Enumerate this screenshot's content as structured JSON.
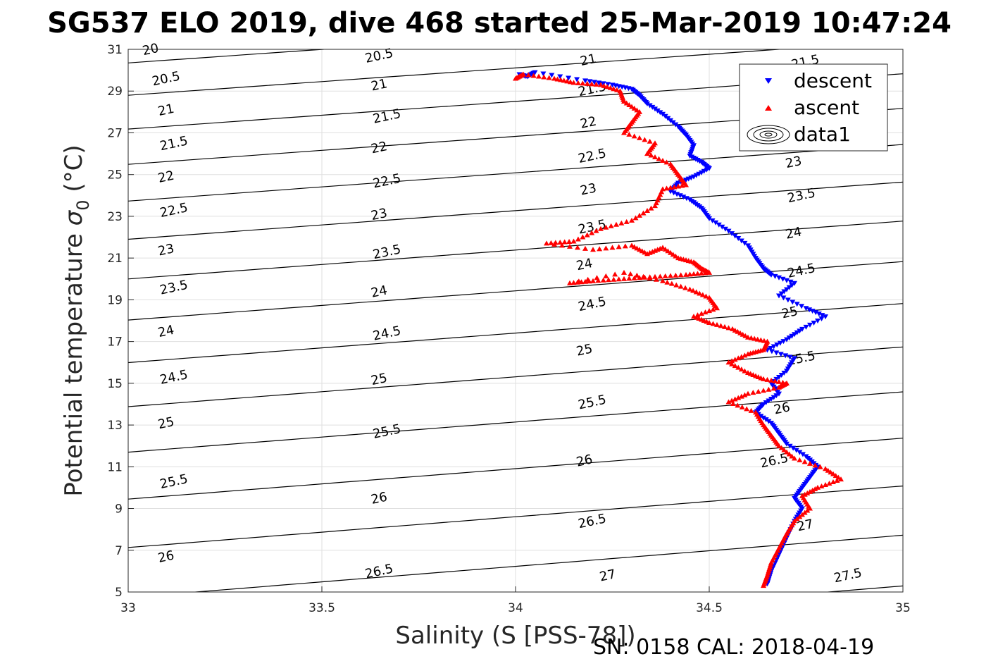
{
  "title": "SG537 ELO 2019, dive 468 started 25-Mar-2019 10:47:24",
  "footer": "SN: 0158  CAL: 2018-04-19",
  "chart_data": {
    "type": "scatter",
    "xlabel": "Salinity (S [PSS-78])",
    "ylabel_text": "Potential temperature ",
    "ylabel_sigma": "σ",
    "ylabel_sub": "0",
    "ylabel_unit": " (°C)",
    "xlim": [
      33,
      35
    ],
    "ylim": [
      5,
      31
    ],
    "xticks": [
      "33",
      "33.5",
      "34",
      "34.5",
      "35"
    ],
    "yticks": [
      "5",
      "7",
      "9",
      "11",
      "13",
      "15",
      "17",
      "19",
      "21",
      "23",
      "25",
      "27",
      "29",
      "31"
    ],
    "grid": true,
    "legend_position": "top-right",
    "legend": [
      "descent",
      "ascent",
      "data1"
    ],
    "colors": {
      "descent": "#0000ff",
      "ascent": "#ff0000",
      "contour": "#000000",
      "grid": "#dfdfdf"
    },
    "contours": {
      "levels": [
        20,
        20.5,
        21,
        21.5,
        22,
        22.5,
        23,
        23.5,
        24,
        24.5,
        25,
        25.5,
        26,
        26.5,
        27,
        27.5
      ],
      "labels": [
        {
          "text": "20",
          "x": 33.06,
          "y": 30.8
        },
        {
          "text": "20.5",
          "x": 33.1,
          "y": 29.4
        },
        {
          "text": "21",
          "x": 33.1,
          "y": 27.9
        },
        {
          "text": "21.5",
          "x": 33.12,
          "y": 26.3
        },
        {
          "text": "22",
          "x": 33.1,
          "y": 24.7
        },
        {
          "text": "22.5",
          "x": 33.12,
          "y": 23.1
        },
        {
          "text": "23",
          "x": 33.1,
          "y": 21.2
        },
        {
          "text": "23.5",
          "x": 33.12,
          "y": 19.4
        },
        {
          "text": "24",
          "x": 33.1,
          "y": 17.3
        },
        {
          "text": "24.5",
          "x": 33.12,
          "y": 15.1
        },
        {
          "text": "25",
          "x": 33.1,
          "y": 12.9
        },
        {
          "text": "25.5",
          "x": 33.12,
          "y": 10.1
        },
        {
          "text": "26",
          "x": 33.1,
          "y": 6.5
        },
        {
          "text": "20.5",
          "x": 33.65,
          "y": 30.5
        },
        {
          "text": "21",
          "x": 33.65,
          "y": 29.1
        },
        {
          "text": "21.5",
          "x": 33.67,
          "y": 27.6
        },
        {
          "text": "22",
          "x": 33.65,
          "y": 26.1
        },
        {
          "text": "22.5",
          "x": 33.67,
          "y": 24.5
        },
        {
          "text": "23",
          "x": 33.65,
          "y": 22.9
        },
        {
          "text": "23.5",
          "x": 33.67,
          "y": 21.1
        },
        {
          "text": "24",
          "x": 33.65,
          "y": 19.2
        },
        {
          "text": "24.5",
          "x": 33.67,
          "y": 17.2
        },
        {
          "text": "25",
          "x": 33.65,
          "y": 15.0
        },
        {
          "text": "25.5",
          "x": 33.67,
          "y": 12.5
        },
        {
          "text": "26",
          "x": 33.65,
          "y": 9.3
        },
        {
          "text": "26.5",
          "x": 33.65,
          "y": 5.8
        },
        {
          "text": "21",
          "x": 34.19,
          "y": 30.3
        },
        {
          "text": "21.5",
          "x": 34.2,
          "y": 28.9
        },
        {
          "text": "22",
          "x": 34.19,
          "y": 27.3
        },
        {
          "text": "22.5",
          "x": 34.2,
          "y": 25.7
        },
        {
          "text": "23",
          "x": 34.19,
          "y": 24.1
        },
        {
          "text": "23.5",
          "x": 34.2,
          "y": 22.3
        },
        {
          "text": "24",
          "x": 34.18,
          "y": 20.5
        },
        {
          "text": "24.5",
          "x": 34.2,
          "y": 18.6
        },
        {
          "text": "25",
          "x": 34.18,
          "y": 16.4
        },
        {
          "text": "25.5",
          "x": 34.2,
          "y": 13.9
        },
        {
          "text": "26",
          "x": 34.18,
          "y": 11.1
        },
        {
          "text": "26.5",
          "x": 34.2,
          "y": 8.2
        },
        {
          "text": "27",
          "x": 34.24,
          "y": 5.6
        },
        {
          "text": "21.5",
          "x": 34.75,
          "y": 30.2
        },
        {
          "text": "23",
          "x": 34.72,
          "y": 25.4
        },
        {
          "text": "23.5",
          "x": 34.74,
          "y": 23.8
        },
        {
          "text": "24",
          "x": 34.72,
          "y": 22.0
        },
        {
          "text": "24.5",
          "x": 34.74,
          "y": 20.2
        },
        {
          "text": "25",
          "x": 34.71,
          "y": 18.2
        },
        {
          "text": "25.5",
          "x": 34.74,
          "y": 16.0
        },
        {
          "text": "26",
          "x": 34.69,
          "y": 13.6
        },
        {
          "text": "26.5",
          "x": 34.67,
          "y": 11.1
        },
        {
          "text": "27",
          "x": 34.75,
          "y": 8.0
        },
        {
          "text": "27.5",
          "x": 34.86,
          "y": 5.6
        }
      ]
    },
    "series": [
      {
        "name": "descent",
        "marker": "triangle-down",
        "x": [
          34.01,
          34.03,
          34.05,
          34.18,
          34.25,
          34.3,
          34.32,
          34.34,
          34.38,
          34.42,
          34.44,
          34.46,
          34.45,
          34.48,
          34.5,
          34.46,
          34.42,
          34.4,
          34.45,
          34.48,
          34.5,
          34.55,
          34.6,
          34.62,
          34.64,
          34.66,
          34.72,
          34.68,
          34.75,
          34.8,
          34.74,
          34.7,
          34.65,
          34.72,
          34.7,
          34.66,
          34.68,
          34.64,
          34.62,
          34.66,
          34.68,
          34.7,
          34.75,
          34.78,
          34.76,
          34.74,
          34.72,
          34.74,
          34.72,
          34.7,
          34.68,
          34.66,
          34.65
        ],
        "y": [
          29.8,
          29.7,
          29.9,
          29.5,
          29.3,
          29.1,
          28.8,
          28.4,
          27.9,
          27.3,
          26.9,
          26.4,
          25.9,
          25.6,
          25.3,
          24.9,
          24.6,
          24.2,
          23.8,
          23.4,
          22.9,
          22.3,
          21.6,
          21.0,
          20.5,
          20.2,
          19.8,
          19.2,
          18.6,
          18.2,
          17.6,
          17.1,
          16.6,
          16.2,
          15.6,
          15.0,
          14.5,
          14.0,
          13.6,
          13.1,
          12.6,
          12.1,
          11.5,
          11.0,
          10.5,
          10.0,
          9.5,
          9.0,
          8.4,
          7.6,
          6.8,
          6.0,
          5.4
        ]
      },
      {
        "name": "ascent",
        "marker": "triangle-up",
        "x": [
          34.0,
          34.02,
          34.1,
          34.15,
          34.22,
          34.27,
          34.28,
          34.32,
          34.3,
          34.28,
          34.36,
          34.34,
          34.4,
          34.42,
          34.44,
          34.38,
          34.36,
          34.3,
          34.22,
          34.15,
          34.08,
          34.2,
          34.3,
          34.34,
          34.38,
          34.42,
          34.46,
          34.48,
          34.5,
          34.44,
          34.36,
          34.28,
          34.2,
          34.14,
          34.28,
          34.38,
          34.45,
          34.5,
          34.52,
          34.46,
          34.5,
          34.56,
          34.6,
          34.65,
          34.64,
          34.6,
          34.55,
          34.6,
          34.64,
          34.7,
          34.68,
          34.6,
          34.55,
          34.62,
          34.64,
          34.66,
          34.68,
          34.72,
          34.8,
          34.84,
          34.78,
          34.74,
          34.76,
          34.72,
          34.7,
          34.68,
          34.66,
          34.65,
          34.64
        ],
        "y": [
          29.6,
          29.8,
          29.6,
          29.4,
          29.3,
          29.0,
          28.5,
          28.0,
          27.5,
          27.0,
          26.5,
          26.0,
          25.5,
          25.0,
          24.5,
          24.3,
          23.5,
          22.8,
          22.4,
          21.8,
          21.7,
          21.4,
          21.6,
          21.2,
          21.5,
          21.0,
          20.8,
          20.5,
          20.3,
          20.2,
          20.1,
          20.0,
          19.9,
          19.8,
          20.3,
          19.9,
          19.5,
          19.1,
          18.6,
          18.2,
          17.9,
          17.6,
          17.2,
          17.0,
          16.6,
          16.4,
          16.0,
          15.5,
          15.2,
          15.0,
          14.8,
          14.5,
          14.1,
          13.6,
          13.0,
          12.5,
          12.0,
          11.4,
          10.9,
          10.4,
          10.0,
          9.6,
          9.0,
          8.4,
          7.8,
          7.1,
          6.4,
          5.8,
          5.3
        ]
      }
    ]
  }
}
